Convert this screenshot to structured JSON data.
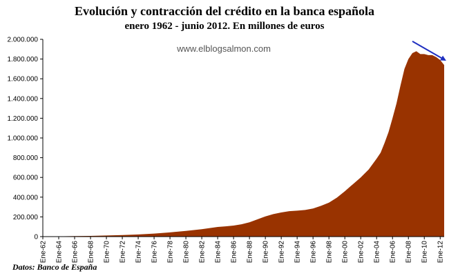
{
  "chart_data": {
    "type": "area",
    "title": "Evolución y contracción del crédito en la banca española",
    "subtitle": "enero 1962 - junio 2012.   En millones de euros",
    "watermark": "www.elblogsalmon.com",
    "source": "Datos: Banco de España",
    "fill_color": "#993300",
    "arrow_color": "#1f2fc0",
    "ylim": [
      0,
      2000000
    ],
    "yticks": [
      "0",
      "200.000",
      "400.000",
      "600.000",
      "800.000",
      "1.000.000",
      "1.200.000",
      "1.400.000",
      "1.600.000",
      "1.800.000",
      "2.000.000"
    ],
    "ytick_values": [
      0,
      200000,
      400000,
      600000,
      800000,
      1000000,
      1200000,
      1400000,
      1600000,
      1800000,
      2000000
    ],
    "xlim": [
      1962.0,
      2012.5
    ],
    "xticks": [
      "Ene-62",
      "Ene-64",
      "Ene-66",
      "Ene-68",
      "Ene-70",
      "Ene-72",
      "Ene-74",
      "Ene-76",
      "Ene-78",
      "Ene-80",
      "Ene-82",
      "Ene-84",
      "Ene-86",
      "Ene-88",
      "Ene-90",
      "Ene-92",
      "Ene-94",
      "Ene-96",
      "Ene-98",
      "Ene-00",
      "Ene-02",
      "Ene-04",
      "Ene-06",
      "Ene-08",
      "Ene-10",
      "Ene-12"
    ],
    "xtick_years": [
      1962,
      1964,
      1966,
      1968,
      1970,
      1972,
      1974,
      1976,
      1978,
      1980,
      1982,
      1984,
      1986,
      1988,
      1990,
      1992,
      1994,
      1996,
      1998,
      2000,
      2002,
      2004,
      2006,
      2008,
      2010,
      2012
    ],
    "series": [
      {
        "x": [
          1962,
          1964,
          1966,
          1968,
          1970,
          1972,
          1974,
          1976,
          1978,
          1980,
          1982,
          1984,
          1985,
          1986,
          1987,
          1988,
          1989,
          1990,
          1991,
          1992,
          1993,
          1994,
          1995,
          1996,
          1997,
          1998,
          1999,
          2000,
          2001,
          2002,
          2003,
          2004,
          2004.5,
          2005,
          2005.5,
          2006,
          2006.5,
          2007,
          2007.5,
          2008,
          2008.5,
          2009,
          2009.5,
          2010,
          2010.5,
          2011,
          2011.5,
          2012,
          2012.5
        ],
        "y": [
          2000,
          3000,
          5000,
          7000,
          11000,
          16000,
          22000,
          31000,
          43000,
          58000,
          75000,
          98000,
          104000,
          112000,
          125000,
          145000,
          175000,
          205000,
          228000,
          245000,
          258000,
          263000,
          270000,
          285000,
          312000,
          345000,
          395000,
          460000,
          530000,
          600000,
          680000,
          790000,
          850000,
          950000,
          1060000,
          1200000,
          1350000,
          1530000,
          1700000,
          1800000,
          1860000,
          1880000,
          1850000,
          1850000,
          1840000,
          1840000,
          1820000,
          1790000,
          1740000
        ]
      }
    ],
    "trend_arrow": {
      "from": [
        2008.5,
        1980000
      ],
      "to": [
        2012.6,
        1790000
      ]
    },
    "grid": false,
    "legend": "none"
  }
}
